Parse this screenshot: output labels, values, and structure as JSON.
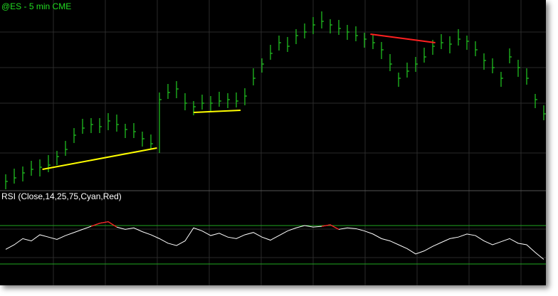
{
  "chart_data": [
    {
      "type": "ohlc",
      "title": "@ES - 5 min  CME",
      "color": "#22cc22",
      "high": [
        25,
        33,
        36,
        44,
        46,
        52,
        58,
        72,
        90,
        103,
        104,
        104,
        111,
        109,
        96,
        97,
        85,
        81,
        140,
        152,
        156,
        139,
        128,
        137,
        135,
        141,
        139,
        140,
        146,
        174,
        188,
        207,
        220,
        218,
        229,
        237,
        246,
        254,
        243,
        242,
        235,
        233,
        224,
        222,
        211,
        194,
        168,
        182,
        190,
        203,
        214,
        222,
        219,
        229,
        220,
        212,
        195,
        188,
        169,
        202,
        186,
        174,
        138,
        122
      ],
      "low": [
        4,
        12,
        15,
        23,
        22,
        28,
        38,
        51,
        69,
        82,
        83,
        83,
        87,
        85,
        76,
        76,
        64,
        60,
        55,
        131,
        132,
        115,
        108,
        116,
        114,
        120,
        118,
        119,
        122,
        150,
        168,
        186,
        199,
        197,
        208,
        216,
        222,
        230,
        223,
        221,
        214,
        212,
        203,
        201,
        187,
        170,
        148,
        161,
        169,
        182,
        193,
        201,
        195,
        206,
        200,
        191,
        172,
        167,
        148,
        181,
        162,
        151,
        118,
        101
      ],
      "close": [
        15,
        20,
        27,
        32,
        35,
        38,
        50,
        60,
        80,
        90,
        95,
        92,
        100,
        95,
        88,
        85,
        75,
        68,
        130,
        140,
        145,
        125,
        120,
        125,
        125,
        128,
        130,
        128,
        135,
        160,
        180,
        195,
        210,
        205,
        220,
        225,
        235,
        240,
        235,
        230,
        225,
        220,
        215,
        210,
        200,
        180,
        160,
        170,
        180,
        190,
        205,
        210,
        208,
        215,
        212,
        200,
        185,
        175,
        160,
        190,
        175,
        160,
        130,
        110
      ],
      "ylim": [
        0,
        260
      ],
      "trendlines": [
        {
          "color": "#ffff00",
          "from": [
            4.3,
            32
          ],
          "to": [
            17.7,
            62
          ]
        },
        {
          "color": "#ffff00",
          "from": [
            22,
            112
          ],
          "to": [
            27.5,
            115
          ]
        },
        {
          "color": "#ff2020",
          "from": [
            42.7,
            222
          ],
          "to": [
            50.3,
            210
          ]
        }
      ]
    },
    {
      "type": "line",
      "title": "RSI (Close,14,25,75,Cyan,Red)",
      "color": "#ffffff",
      "over_color": "#ff2020",
      "level_color": "#1fa81f",
      "values": [
        44,
        50,
        58,
        55,
        63,
        60,
        57,
        62,
        66,
        70,
        74,
        78,
        80,
        73,
        70,
        72,
        67,
        63,
        58,
        52,
        49,
        55,
        72,
        68,
        62,
        65,
        60,
        58,
        63,
        66,
        60,
        56,
        62,
        68,
        72,
        75,
        73,
        74,
        76,
        70,
        72,
        71,
        68,
        64,
        58,
        55,
        50,
        45,
        38,
        42,
        48,
        53,
        58,
        60,
        64,
        62,
        55,
        50,
        54,
        58,
        52,
        50,
        40,
        31
      ],
      "levels": [
        25,
        75
      ],
      "ylim": [
        0,
        100
      ]
    }
  ]
}
